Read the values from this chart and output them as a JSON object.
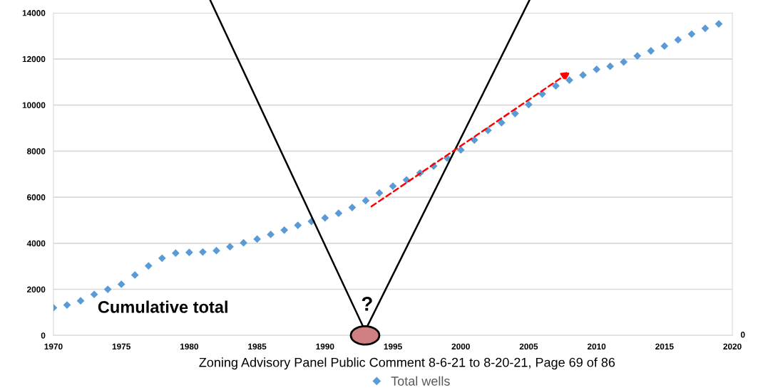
{
  "chart_data": {
    "type": "scatter",
    "x": [
      1970,
      1971,
      1972,
      1973,
      1974,
      1975,
      1976,
      1977,
      1978,
      1979,
      1980,
      1981,
      1982,
      1983,
      1984,
      1985,
      1986,
      1987,
      1988,
      1989,
      1990,
      1991,
      1992,
      1993,
      1994,
      1995,
      1996,
      1997,
      1998,
      1999,
      2000,
      2001,
      2002,
      2003,
      2004,
      2005,
      2006,
      2007,
      2008,
      2009,
      2010,
      2011,
      2012,
      2013,
      2014,
      2015,
      2016,
      2017,
      2018,
      2019
    ],
    "series": [
      {
        "name": "Total wells",
        "color": "#5b9bd5",
        "values": [
          1200,
          1320,
          1500,
          1780,
          2000,
          2220,
          2620,
          3020,
          3350,
          3570,
          3600,
          3620,
          3680,
          3850,
          4020,
          4180,
          4380,
          4570,
          4780,
          4950,
          5100,
          5300,
          5550,
          5850,
          6180,
          6480,
          6750,
          7050,
          7350,
          7700,
          8050,
          8480,
          8900,
          9230,
          9630,
          10020,
          10480,
          10830,
          11080,
          11300,
          11550,
          11680,
          11870,
          12130,
          12350,
          12560,
          12830,
          13080,
          13330,
          13520
        ]
      }
    ],
    "xlim": [
      1970,
      2020
    ],
    "xticks": [
      1970,
      1975,
      1980,
      1985,
      1990,
      1995,
      2000,
      2005,
      2010,
      2015,
      2020
    ],
    "ylim": [
      0,
      14000
    ],
    "yticks": [
      0,
      2000,
      4000,
      6000,
      8000,
      10000,
      12000,
      14000
    ],
    "grid": "y",
    "marker": "diamond",
    "legend": "bottom",
    "annotations": [
      "Cumulative total",
      "?",
      "Zoning Advisory Panel Public Comment 8-6-21 to 8-20-21, Page 69 of 86",
      "0"
    ]
  }
}
